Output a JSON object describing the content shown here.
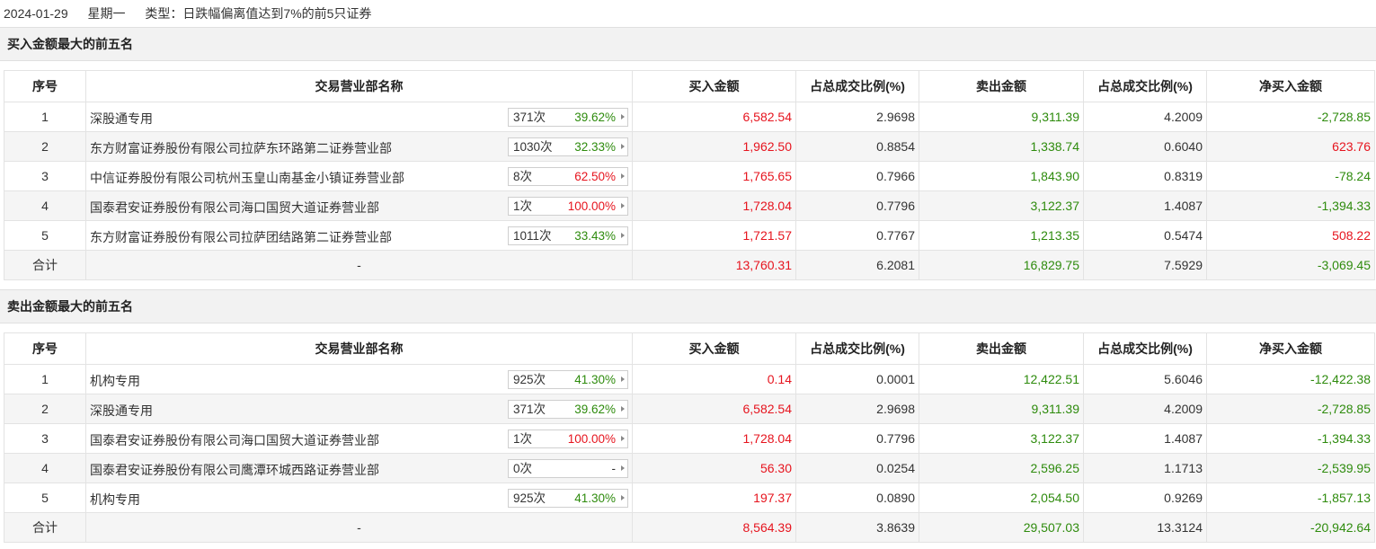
{
  "header": {
    "date": "2024-01-29",
    "weekday": "星期一",
    "type": "类型：日跌幅偏离值达到7%的前5只证券"
  },
  "columns": [
    "序号",
    "交易营业部名称",
    "买入金额",
    "占总成交比例(%)",
    "卖出金额",
    "占总成交比例(%)",
    "净买入金额"
  ],
  "colors": {
    "up": "#e6141e",
    "down": "#2e8b0d"
  },
  "buy_section": {
    "title": "买入金额最大的前五名",
    "rows": [
      {
        "rank": "1",
        "name": "深股通专用",
        "count": "371次",
        "pct": "39.62%",
        "pct_color": "green",
        "buy": "6,582.54",
        "buy_ratio": "2.9698",
        "sell": "9,311.39",
        "sell_ratio": "4.2009",
        "net": "-2,728.85",
        "net_color": "green"
      },
      {
        "rank": "2",
        "name": "东方财富证券股份有限公司拉萨东环路第二证券营业部",
        "count": "1030次",
        "pct": "32.33%",
        "pct_color": "green",
        "buy": "1,962.50",
        "buy_ratio": "0.8854",
        "sell": "1,338.74",
        "sell_ratio": "0.6040",
        "net": "623.76",
        "net_color": "red"
      },
      {
        "rank": "3",
        "name": "中信证券股份有限公司杭州玉皇山南基金小镇证券营业部",
        "count": "8次",
        "pct": "62.50%",
        "pct_color": "red",
        "buy": "1,765.65",
        "buy_ratio": "0.7966",
        "sell": "1,843.90",
        "sell_ratio": "0.8319",
        "net": "-78.24",
        "net_color": "green"
      },
      {
        "rank": "4",
        "name": "国泰君安证券股份有限公司海口国贸大道证券营业部",
        "count": "1次",
        "pct": "100.00%",
        "pct_color": "red",
        "buy": "1,728.04",
        "buy_ratio": "0.7796",
        "sell": "3,122.37",
        "sell_ratio": "1.4087",
        "net": "-1,394.33",
        "net_color": "green"
      },
      {
        "rank": "5",
        "name": "东方财富证券股份有限公司拉萨团结路第二证券营业部",
        "count": "1011次",
        "pct": "33.43%",
        "pct_color": "green",
        "buy": "1,721.57",
        "buy_ratio": "0.7767",
        "sell": "1,213.35",
        "sell_ratio": "0.5474",
        "net": "508.22",
        "net_color": "red"
      }
    ],
    "total": {
      "label": "合计",
      "name": "-",
      "buy": "13,760.31",
      "buy_ratio": "6.2081",
      "sell": "16,829.75",
      "sell_ratio": "7.5929",
      "net": "-3,069.45",
      "net_color": "green"
    }
  },
  "sell_section": {
    "title": "卖出金额最大的前五名",
    "rows": [
      {
        "rank": "1",
        "name": "机构专用",
        "count": "925次",
        "pct": "41.30%",
        "pct_color": "green",
        "buy": "0.14",
        "buy_ratio": "0.0001",
        "sell": "12,422.51",
        "sell_ratio": "5.6046",
        "net": "-12,422.38",
        "net_color": "green"
      },
      {
        "rank": "2",
        "name": "深股通专用",
        "count": "371次",
        "pct": "39.62%",
        "pct_color": "green",
        "buy": "6,582.54",
        "buy_ratio": "2.9698",
        "sell": "9,311.39",
        "sell_ratio": "4.2009",
        "net": "-2,728.85",
        "net_color": "green"
      },
      {
        "rank": "3",
        "name": "国泰君安证券股份有限公司海口国贸大道证券营业部",
        "count": "1次",
        "pct": "100.00%",
        "pct_color": "red",
        "buy": "1,728.04",
        "buy_ratio": "0.7796",
        "sell": "3,122.37",
        "sell_ratio": "1.4087",
        "net": "-1,394.33",
        "net_color": "green"
      },
      {
        "rank": "4",
        "name": "国泰君安证券股份有限公司鹰潭环城西路证券营业部",
        "count": "0次",
        "pct": "-",
        "pct_color": "dark",
        "buy": "56.30",
        "buy_ratio": "0.0254",
        "sell": "2,596.25",
        "sell_ratio": "1.1713",
        "net": "-2,539.95",
        "net_color": "green"
      },
      {
        "rank": "5",
        "name": "机构专用",
        "count": "925次",
        "pct": "41.30%",
        "pct_color": "green",
        "buy": "197.37",
        "buy_ratio": "0.0890",
        "sell": "2,054.50",
        "sell_ratio": "0.9269",
        "net": "-1,857.13",
        "net_color": "green"
      }
    ],
    "total": {
      "label": "合计",
      "name": "-",
      "buy": "8,564.39",
      "buy_ratio": "3.8639",
      "sell": "29,507.03",
      "sell_ratio": "13.3124",
      "net": "-20,942.64",
      "net_color": "green"
    }
  }
}
